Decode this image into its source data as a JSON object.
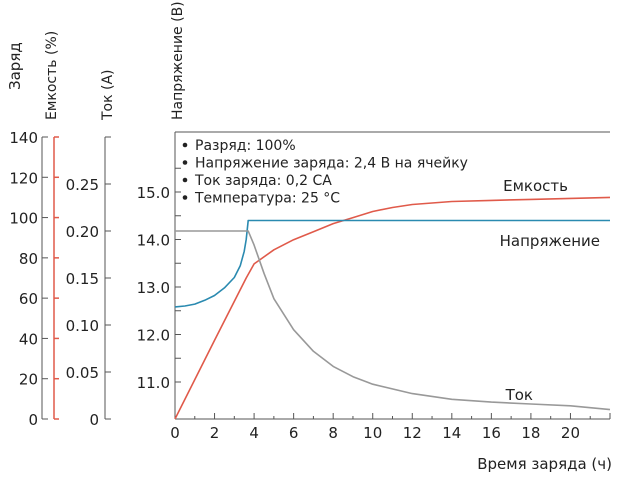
{
  "chart_data": {
    "type": "line",
    "xlabel": "Время заряда (ч)",
    "x_ticks": [
      0,
      2,
      4,
      6,
      8,
      10,
      12,
      14,
      16,
      18,
      20
    ],
    "xlim": [
      0,
      22
    ],
    "axes": [
      {
        "label": "Заряд",
        "unit": "%",
        "ticks": [
          0,
          20,
          40,
          60,
          80,
          100,
          120,
          140
        ],
        "ylim": [
          0,
          140
        ]
      },
      {
        "label": "Емкость (%)",
        "ticks": [],
        "ylim": [
          0,
          140
        ],
        "color": "#e05a4a"
      },
      {
        "label": "Ток (А)",
        "ticks": [
          0,
          0.05,
          0.1,
          0.15,
          0.2,
          0.25
        ],
        "tick_labels": [
          "0",
          "0.05",
          "0.10",
          "0.15",
          "0.20",
          "0.25"
        ],
        "ylim": [
          0,
          0.3
        ]
      },
      {
        "label": "Напряжение (В)",
        "ticks": [
          11.0,
          12.0,
          13.0,
          14.0,
          15.0
        ],
        "tick_labels": [
          "11.0",
          "12.0",
          "13.0",
          "14.0",
          "15.0"
        ],
        "ylim": [
          10.2,
          16.0
        ]
      }
    ],
    "legend_notes": [
      "Разряд: 100%",
      "Напряжение заряда: 2,4 В на ячейку",
      "Ток заряда: 0,2 СА",
      "Температура: 25 °С"
    ],
    "series": [
      {
        "name": "Емкость",
        "axis": "charge",
        "color": "#e05a4a",
        "x": [
          0,
          2,
          3.6,
          4,
          5,
          6,
          7,
          8,
          9,
          10,
          11,
          12,
          14,
          16,
          18,
          20,
          22
        ],
        "y": [
          0,
          39,
          70,
          77,
          84,
          89,
          93,
          97,
          100,
          103,
          105,
          106.5,
          108,
          108.5,
          109,
          109.5,
          110
        ]
      },
      {
        "name": "Напряжение",
        "axis": "voltage",
        "color": "#2a8ab0",
        "x": [
          0,
          0.5,
          1,
          1.5,
          2,
          2.5,
          3,
          3.3,
          3.5,
          3.6,
          3.7,
          22
        ],
        "y": [
          12.58,
          12.6,
          12.64,
          12.72,
          12.82,
          12.98,
          13.2,
          13.45,
          13.75,
          14.0,
          14.4,
          14.4
        ]
      },
      {
        "name": "Ток",
        "axis": "current",
        "color": "#999999",
        "x": [
          0,
          3.7,
          4,
          4.5,
          5,
          6,
          7,
          8,
          9,
          10,
          12,
          14,
          16,
          18,
          20,
          22
        ],
        "y": [
          0.2,
          0.2,
          0.185,
          0.155,
          0.128,
          0.095,
          0.072,
          0.056,
          0.045,
          0.037,
          0.027,
          0.021,
          0.018,
          0.016,
          0.014,
          0.01
        ]
      }
    ]
  }
}
